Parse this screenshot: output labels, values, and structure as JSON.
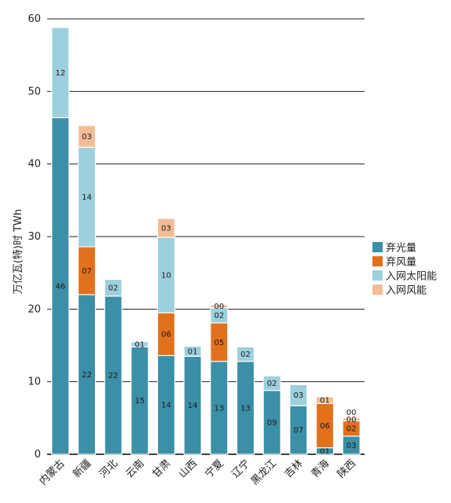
{
  "chart_data": {
    "type": "bar",
    "stacked": true,
    "ylabel": "万亿瓦(特)时  TWh",
    "ylim": [
      0,
      60
    ],
    "yticks": [
      0,
      10,
      20,
      30,
      40,
      50,
      60
    ],
    "grid": true,
    "legend_position": "right",
    "categories": [
      "内蒙古",
      "新疆",
      "河北",
      "云南",
      "甘肃",
      "山西",
      "宁夏",
      "辽宁",
      "黑龙江",
      "吉林",
      "青海",
      "陕西"
    ],
    "series": [
      {
        "name": "弃光量",
        "color": "#3b8fa6",
        "values": [
          46.4,
          22.0,
          21.8,
          14.8,
          13.6,
          13.5,
          12.8,
          12.8,
          8.8,
          6.7,
          0.9,
          2.5
        ],
        "labels": [
          "46",
          "22",
          "22",
          "15",
          "14",
          "14",
          "13",
          "13",
          "09",
          "07",
          "01",
          "03"
        ]
      },
      {
        "name": "弃风量",
        "color": "#e2711d",
        "values": [
          0,
          6.6,
          0,
          0,
          5.9,
          0,
          5.3,
          0,
          0,
          0,
          6.1,
          2.1
        ],
        "labels": [
          "",
          "07",
          "",
          "",
          "06",
          "",
          "05",
          "",
          "",
          "",
          "06",
          "02"
        ]
      },
      {
        "name": "入网太阳能",
        "color": "#9dcfdd",
        "values": [
          12.4,
          13.7,
          2.3,
          0.7,
          10.4,
          1.4,
          2.1,
          2.0,
          2.0,
          2.9,
          0,
          0
        ],
        "labels": [
          "12",
          "14",
          "02",
          "01",
          "10",
          "01",
          "02",
          "02",
          "02",
          "03",
          "",
          ""
        ]
      },
      {
        "name": "入网风能",
        "color": "#f4bc96",
        "values": [
          0,
          3.0,
          0,
          0,
          2.6,
          0,
          0.4,
          0,
          0,
          0,
          0.9,
          0.4
        ],
        "labels": [
          "",
          "03",
          "",
          "",
          "03",
          "",
          "00",
          "",
          "",
          "",
          "01",
          "00"
        ]
      }
    ],
    "extra_labels": [
      {
        "category": "陕西",
        "text": "00"
      }
    ]
  }
}
